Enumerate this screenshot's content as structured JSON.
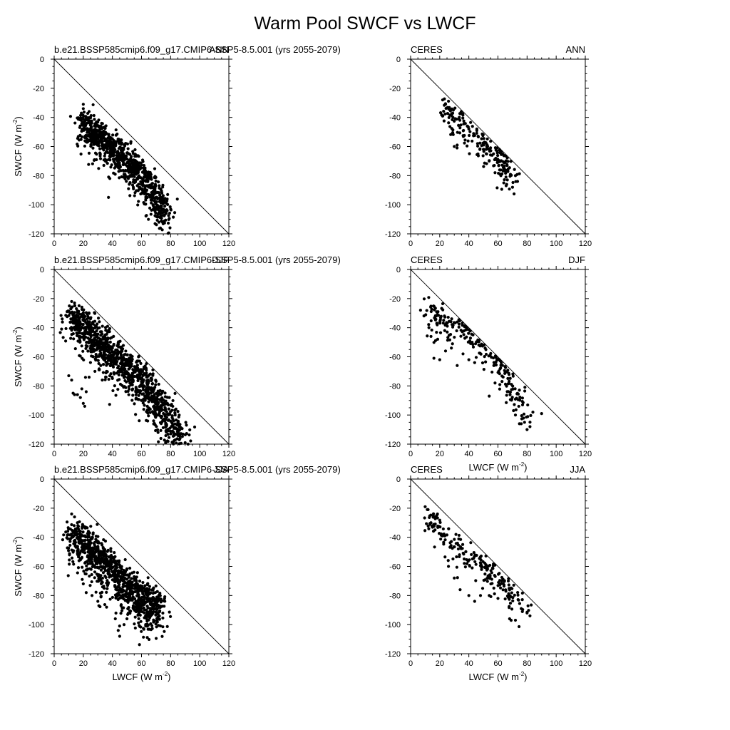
{
  "figure": {
    "title": "Warm Pool SWCF vs LWCF",
    "xlabel_prefix": "LWCF (W m",
    "xlabel_exp": "-2",
    "xlabel_suffix": ")",
    "ylabel_prefix": "SWCF (W m",
    "ylabel_exp": "-2",
    "ylabel_suffix": ")",
    "marker_color": "#000000"
  },
  "chart_data": [
    {
      "type": "scatter",
      "left_title": "b.e21.BSSP585cmip6.f09_g17.CMIP6-SSP5-8.5.001 (yrs 2055-2079)",
      "right_title": "ANN",
      "xlim": [
        0,
        120
      ],
      "ylim": [
        -120,
        0
      ],
      "xticks": [
        0,
        20,
        40,
        60,
        80,
        100,
        120
      ],
      "yticks": [
        0,
        -20,
        -40,
        -60,
        -80,
        -100,
        -120
      ],
      "reference_line": [
        [
          0,
          0
        ],
        [
          120,
          -120
        ]
      ],
      "show_xlabel": false,
      "show_ylabel": true,
      "cloud": [
        [
          19,
          -36
        ],
        [
          22,
          -38
        ],
        [
          26,
          -44
        ],
        [
          30,
          -46
        ],
        [
          34,
          -50
        ],
        [
          38,
          -52
        ],
        [
          42,
          -56
        ],
        [
          46,
          -60
        ],
        [
          50,
          -64
        ],
        [
          54,
          -68
        ],
        [
          58,
          -72
        ],
        [
          62,
          -76
        ],
        [
          66,
          -82
        ],
        [
          70,
          -88
        ],
        [
          74,
          -96
        ],
        [
          76,
          -104
        ]
      ],
      "spread": 10,
      "n": 900,
      "seed": 11,
      "points": [
        [
          20,
          -34
        ],
        [
          20,
          -31
        ],
        [
          24,
          -36
        ],
        [
          26,
          -53
        ],
        [
          30,
          -57
        ],
        [
          34,
          -60
        ],
        [
          40,
          -65
        ],
        [
          44,
          -70
        ],
        [
          52,
          -80
        ],
        [
          60,
          -86
        ],
        [
          64,
          -95
        ],
        [
          68,
          -100
        ],
        [
          70,
          -108
        ],
        [
          72,
          -112
        ],
        [
          73,
          -116
        ],
        [
          75,
          -103
        ],
        [
          76,
          -101
        ],
        [
          77,
          -106
        ],
        [
          74,
          -92
        ]
      ]
    },
    {
      "type": "scatter",
      "left_title": "CERES",
      "right_title": "ANN",
      "xlim": [
        0,
        120
      ],
      "ylim": [
        -120,
        0
      ],
      "xticks": [
        0,
        20,
        40,
        60,
        80,
        100,
        120
      ],
      "yticks": [
        0,
        -20,
        -40,
        -60,
        -80,
        -100,
        -120
      ],
      "reference_line": [
        [
          0,
          0
        ],
        [
          120,
          -120
        ]
      ],
      "show_xlabel": false,
      "show_ylabel": false,
      "cloud": [
        [
          22,
          -29
        ],
        [
          28,
          -33
        ],
        [
          34,
          -38
        ],
        [
          40,
          -44
        ],
        [
          46,
          -50
        ],
        [
          52,
          -56
        ],
        [
          58,
          -61
        ],
        [
          62,
          -66
        ],
        [
          66,
          -72
        ],
        [
          70,
          -80
        ]
      ],
      "spread": 8,
      "n": 200,
      "seed": 23,
      "points": [
        [
          22,
          -28
        ],
        [
          24,
          -31
        ],
        [
          30,
          -60
        ],
        [
          32,
          -59
        ],
        [
          40,
          -48
        ],
        [
          46,
          -58
        ],
        [
          50,
          -62
        ],
        [
          54,
          -70
        ],
        [
          58,
          -78
        ],
        [
          62,
          -80
        ],
        [
          64,
          -85
        ],
        [
          66,
          -86
        ],
        [
          70,
          -88
        ],
        [
          72,
          -80
        ],
        [
          64,
          -66
        ],
        [
          56,
          -66
        ]
      ]
    },
    {
      "type": "scatter",
      "left_title": "b.e21.BSSP585cmip6.f09_g17.CMIP6-SSP5-8.5.001 (yrs 2055-2079)",
      "right_title": "DJF",
      "xlim": [
        0,
        120
      ],
      "ylim": [
        -120,
        0
      ],
      "xticks": [
        0,
        20,
        40,
        60,
        80,
        100,
        120
      ],
      "yticks": [
        0,
        -20,
        -40,
        -60,
        -80,
        -100,
        -120
      ],
      "reference_line": [
        [
          0,
          0
        ],
        [
          120,
          -120
        ]
      ],
      "show_xlabel": false,
      "show_ylabel": true,
      "cloud": [
        [
          12,
          -26
        ],
        [
          16,
          -28
        ],
        [
          20,
          -30
        ],
        [
          25,
          -38
        ],
        [
          30,
          -42
        ],
        [
          35,
          -48
        ],
        [
          40,
          -52
        ],
        [
          45,
          -56
        ],
        [
          50,
          -60
        ],
        [
          55,
          -64
        ],
        [
          60,
          -70
        ],
        [
          65,
          -76
        ],
        [
          70,
          -82
        ],
        [
          75,
          -90
        ],
        [
          80,
          -100
        ],
        [
          85,
          -110
        ]
      ],
      "spread": 12,
      "n": 1100,
      "seed": 37,
      "points": [
        [
          12,
          -22
        ],
        [
          14,
          -23
        ],
        [
          11,
          -30
        ],
        [
          12,
          -34
        ],
        [
          10,
          -73
        ],
        [
          12,
          -76
        ],
        [
          13,
          -85
        ],
        [
          14,
          -86
        ],
        [
          16,
          -86
        ],
        [
          18,
          -88
        ],
        [
          20,
          -92
        ],
        [
          21,
          -94
        ],
        [
          22,
          -84
        ],
        [
          19,
          -82
        ],
        [
          24,
          -74
        ],
        [
          28,
          -70
        ],
        [
          32,
          -66
        ],
        [
          36,
          -70
        ],
        [
          40,
          -66
        ],
        [
          44,
          -70
        ],
        [
          48,
          -74
        ],
        [
          52,
          -78
        ],
        [
          56,
          -84
        ],
        [
          60,
          -90
        ],
        [
          66,
          -96
        ],
        [
          72,
          -100
        ],
        [
          76,
          -104
        ],
        [
          82,
          -112
        ],
        [
          86,
          -117
        ],
        [
          90,
          -119
        ],
        [
          92,
          -120
        ]
      ]
    },
    {
      "type": "scatter",
      "left_title": "CERES",
      "right_title": "DJF",
      "xlim": [
        0,
        120
      ],
      "ylim": [
        -120,
        0
      ],
      "xticks": [
        0,
        20,
        40,
        60,
        80,
        100,
        120
      ],
      "yticks": [
        0,
        -20,
        -40,
        -60,
        -80,
        -100,
        -120
      ],
      "reference_line": [
        [
          0,
          0
        ],
        [
          120,
          -120
        ]
      ],
      "show_xlabel": true,
      "show_ylabel": false,
      "cloud": [
        [
          12,
          -19
        ],
        [
          16,
          -24
        ],
        [
          20,
          -30
        ],
        [
          26,
          -34
        ],
        [
          32,
          -30
        ],
        [
          38,
          -40
        ],
        [
          46,
          -44
        ],
        [
          52,
          -50
        ],
        [
          58,
          -58
        ],
        [
          64,
          -64
        ],
        [
          68,
          -72
        ],
        [
          72,
          -80
        ],
        [
          76,
          -88
        ],
        [
          80,
          -98
        ]
      ],
      "spread": 9,
      "n": 230,
      "seed": 53,
      "points": [
        [
          14,
          -46
        ],
        [
          16,
          -61
        ],
        [
          20,
          -62
        ],
        [
          24,
          -56
        ],
        [
          28,
          -54
        ],
        [
          32,
          -66
        ],
        [
          36,
          -58
        ],
        [
          40,
          -62
        ],
        [
          44,
          -64
        ],
        [
          54,
          -87
        ],
        [
          58,
          -78
        ],
        [
          72,
          -100
        ],
        [
          76,
          -106
        ],
        [
          80,
          -110
        ],
        [
          82,
          -108
        ],
        [
          84,
          -98
        ],
        [
          90,
          -99
        ]
      ]
    },
    {
      "type": "scatter",
      "left_title": "b.e21.BSSP585cmip6.f09_g17.CMIP6-SSP5-8.5.001 (yrs 2055-2079)",
      "right_title": "JJA",
      "xlim": [
        0,
        120
      ],
      "ylim": [
        -120,
        0
      ],
      "xticks": [
        0,
        20,
        40,
        60,
        80,
        100,
        120
      ],
      "yticks": [
        0,
        -20,
        -40,
        -60,
        -80,
        -100,
        -120
      ],
      "reference_line": [
        [
          0,
          0
        ],
        [
          120,
          -120
        ]
      ],
      "show_xlabel": true,
      "show_ylabel": true,
      "cloud": [
        [
          13,
          -34
        ],
        [
          18,
          -32
        ],
        [
          24,
          -40
        ],
        [
          30,
          -46
        ],
        [
          36,
          -52
        ],
        [
          42,
          -58
        ],
        [
          48,
          -64
        ],
        [
          54,
          -70
        ],
        [
          60,
          -76
        ],
        [
          66,
          -80
        ],
        [
          70,
          -82
        ]
      ],
      "spread": 13,
      "n": 950,
      "seed": 71,
      "points": [
        [
          12,
          -24
        ],
        [
          14,
          -26
        ],
        [
          16,
          -30
        ],
        [
          20,
          -72
        ],
        [
          22,
          -78
        ],
        [
          26,
          -80
        ],
        [
          30,
          -84
        ],
        [
          36,
          -88
        ],
        [
          42,
          -96
        ],
        [
          44,
          -104
        ],
        [
          45,
          -108
        ],
        [
          48,
          -100
        ],
        [
          50,
          -96
        ],
        [
          56,
          -88
        ],
        [
          62,
          -86
        ],
        [
          68,
          -82
        ],
        [
          72,
          -80
        ]
      ]
    },
    {
      "type": "scatter",
      "left_title": "CERES",
      "right_title": "JJA",
      "xlim": [
        0,
        120
      ],
      "ylim": [
        -120,
        0
      ],
      "xticks": [
        0,
        20,
        40,
        60,
        80,
        100,
        120
      ],
      "yticks": [
        0,
        -20,
        -40,
        -60,
        -80,
        -100,
        -120
      ],
      "reference_line": [
        [
          0,
          0
        ],
        [
          120,
          -120
        ]
      ],
      "show_xlabel": true,
      "show_ylabel": false,
      "cloud": [
        [
          11,
          -20
        ],
        [
          16,
          -24
        ],
        [
          22,
          -32
        ],
        [
          30,
          -40
        ],
        [
          38,
          -46
        ],
        [
          44,
          -50
        ],
        [
          50,
          -54
        ],
        [
          56,
          -60
        ],
        [
          62,
          -66
        ],
        [
          68,
          -72
        ],
        [
          74,
          -80
        ],
        [
          78,
          -86
        ]
      ],
      "spread": 8,
      "n": 220,
      "seed": 89,
      "points": [
        [
          10,
          -19
        ],
        [
          12,
          -21
        ],
        [
          26,
          -60
        ],
        [
          30,
          -68
        ],
        [
          34,
          -76
        ],
        [
          40,
          -80
        ],
        [
          44,
          -84
        ],
        [
          48,
          -80
        ],
        [
          54,
          -80
        ],
        [
          60,
          -82
        ],
        [
          68,
          -96
        ],
        [
          72,
          -97
        ],
        [
          80,
          -92
        ],
        [
          82,
          -94
        ],
        [
          76,
          -89
        ]
      ]
    }
  ]
}
